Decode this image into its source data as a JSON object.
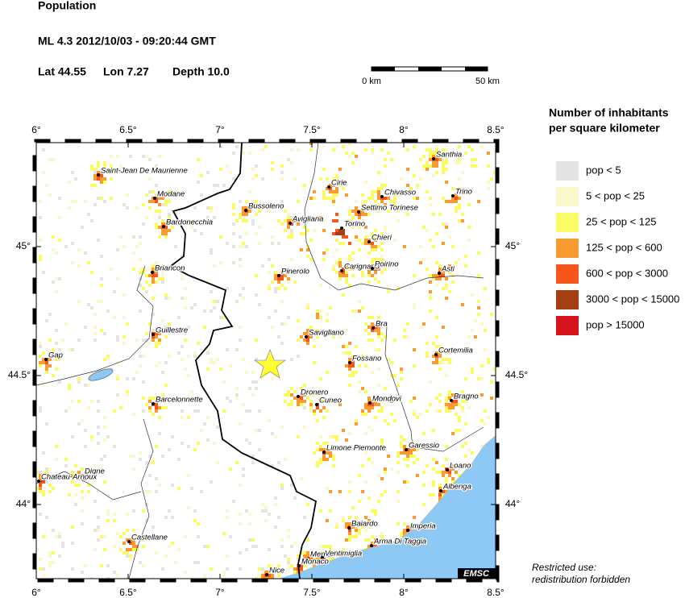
{
  "header": {
    "title": "Population",
    "event": "ML 4.3  2012/10/03 - 09:20:44 GMT",
    "lat": "Lat 44.55",
    "lon": "Lon 7.27",
    "depth": "Depth  10.0"
  },
  "scale_bar": {
    "start": "0 km",
    "end": "50 km"
  },
  "map": {
    "lon_ticks": [
      {
        "value": 6,
        "label": "6°"
      },
      {
        "value": 6.5,
        "label": "6.5°"
      },
      {
        "value": 7,
        "label": "7°"
      },
      {
        "value": 7.5,
        "label": "7.5°"
      },
      {
        "value": 8,
        "label": "8°"
      },
      {
        "value": 8.5,
        "label": "8.5°"
      }
    ],
    "lat_ticks": [
      {
        "value": 44,
        "label": "44°"
      },
      {
        "value": 44.5,
        "label": "44.5°"
      },
      {
        "value": 45,
        "label": "45°"
      }
    ],
    "cities": [
      "Saint-Jean De Maurienne",
      "Modane",
      "Bardonecchia",
      "Briancon",
      "Guillestre",
      "Gap",
      "Barcelonnette",
      "Digne",
      "Chateau-Arnoux",
      "Castellane",
      "Bussoleno",
      "Avigliana",
      "Cirie",
      "Chivasso",
      "Settimo Torinese",
      "Torino",
      "Chieri",
      "Pinerolo",
      "Carignano",
      "Poirino",
      "Santhia",
      "Trino",
      "Asti",
      "Bra",
      "Savigliano",
      "Fossano",
      "Cortemilia",
      "Dronero",
      "Cuneo",
      "Mondovi",
      "Bragno",
      "Limone Piemonte",
      "Garessio",
      "Loano",
      "Albenga",
      "Baiardo",
      "Imperia",
      "Arma Di Taggia",
      "Menton",
      "Ventimiglia",
      "Monaco",
      "Nice"
    ],
    "credit": "EMSC"
  },
  "legend": {
    "title": [
      "Number of inhabitants",
      "per square kilometer"
    ],
    "items": [
      {
        "label": "pop < 5",
        "color": "#e4e4e2"
      },
      {
        "label": "5 < pop < 25",
        "color": "#fbf8cc"
      },
      {
        "label": "25 < pop < 125",
        "color": "#fbfb66"
      },
      {
        "label": "125 < pop < 600",
        "color": "#f99a33"
      },
      {
        "label": "600 < pop < 3000",
        "color": "#f7561b"
      },
      {
        "label": "3000 < pop < 15000",
        "color": "#a63f13"
      },
      {
        "label": "pop > 15000",
        "color": "#d7141c"
      }
    ]
  },
  "footer": [
    "Restricted use:",
    "redistribution forbidden"
  ]
}
